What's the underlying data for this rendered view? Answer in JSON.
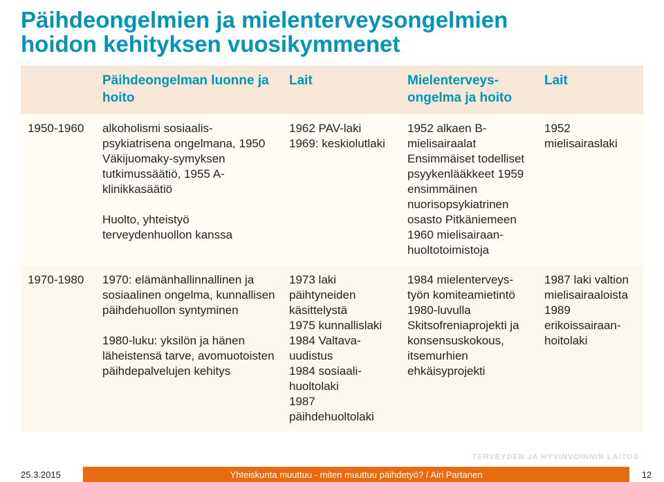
{
  "title_line1": "Päihdeongelmien ja mielenterveysongelmien",
  "title_line2": "hoidon kehityksen vuosikymmenet",
  "title_color": "#0095b7",
  "title_fontsize": 33,
  "table": {
    "header_bg": "#f7e7d9",
    "header_text_color": "#0095b7",
    "row1_bg": "#fefcf5",
    "row2_bg": "#fcf7ee",
    "cell_text_color": "#222222",
    "col_widths": [
      "12%",
      "30%",
      "19%",
      "22%",
      "17%"
    ],
    "columns": [
      "",
      "Päihdeongelman luonne ja hoito",
      "Lait",
      "Mielenterveys-ongelma ja hoito",
      "Lait"
    ],
    "rows": [
      {
        "period": "1950-1960",
        "c1": "alkoholismi sosiaalis-psykiatrisena ongelmana, 1950 Väkijuomaky-symyksen tutkimussäätiö, 1955 A-klinikkasäätiö\n\nHuolto, yhteistyö terveydenhuollon kanssa",
        "c2": "1962 PAV-laki\n1969: keskiolutlaki",
        "c3": "1952 alkaen B-mielisairaalat Ensimmäiset todelliset psyykenlääkkeet 1959 ensimmäinen nuorisopsykiatrinen osasto Pitkäniemeen 1960 mielisairaan-huoltotoimistoja",
        "c4": "1952 mielisairaslaki"
      },
      {
        "period": "1970-1980",
        "c1": "1970: elämänhallinnallinen ja sosiaalinen ongelma, kunnallisen päihdehuollon syntyminen\n\n1980-luku: yksilön ja hänen läheistensä tarve, avomuotoisten päihdepalvelujen kehitys",
        "c2": "1973 laki päihtyneiden käsittelystä\n1975 kunnallislaki\n1984 Valtava-uudistus\n1984 sosiaali-huoltolaki\n1987 päihdehuoltolaki",
        "c3": "1984 mielenterveys-työn komiteamietintö 1980-luvulla Skitsofreniaprojekti ja konsensuskokous, itsemurhien ehkäisyprojekti",
        "c4": "1987 laki valtion mielisairaaloista 1989 erikoissairaan-hoitolaki"
      }
    ]
  },
  "footer": {
    "date": "25.3.2015",
    "bar_text": "Yhteiskunta muuttuu - miten muuttuu päihdetyö? / Airi Partanen",
    "bar_bg": "#e96b10",
    "bar_text_color": "#ffffff",
    "page": "12"
  },
  "watermark": "TERVEYDEN JA HYVINVOINNIN LAITOS"
}
